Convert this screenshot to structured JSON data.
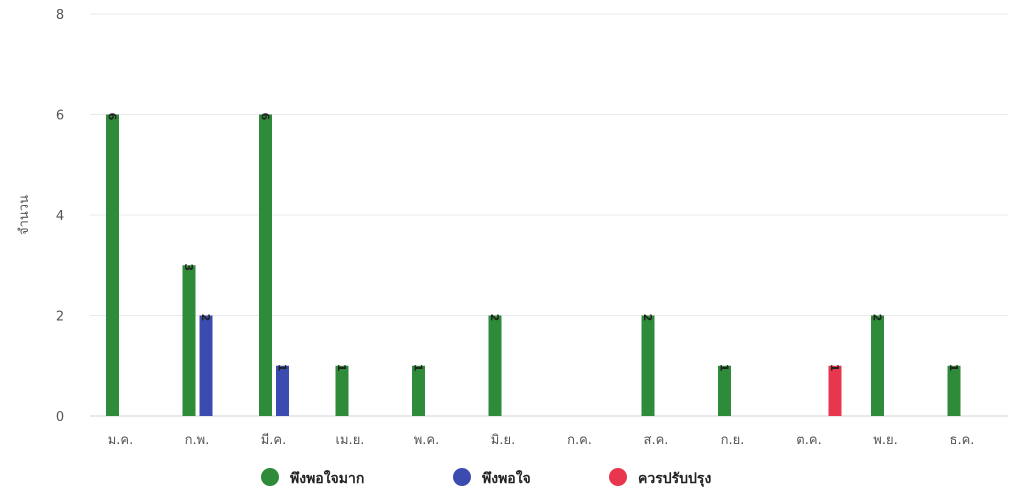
{
  "chart_data": {
    "type": "bar",
    "ylabel": "จำนวน",
    "xlabel": "",
    "ylim": [
      0,
      8
    ],
    "yticks": [
      0,
      2,
      4,
      6,
      8
    ],
    "grid": true,
    "legend_position": "bottom-center",
    "categories": [
      "ม.ค.",
      "ก.พ.",
      "มี.ค.",
      "เม.ย.",
      "พ.ค.",
      "มิ.ย.",
      "ก.ค.",
      "ส.ค.",
      "ก.ย.",
      "ต.ค.",
      "พ.ย.",
      "ธ.ค."
    ],
    "series": [
      {
        "name": "พึงพอใจมาก",
        "color": "#2e8b3a",
        "values": [
          6,
          3,
          6,
          1,
          1,
          2,
          0,
          2,
          1,
          0,
          2,
          1
        ]
      },
      {
        "name": "พึงพอใจ",
        "color": "#3c4bb0",
        "values": [
          0,
          2,
          1,
          0,
          0,
          0,
          0,
          0,
          0,
          0,
          0,
          0
        ]
      },
      {
        "name": "ควรปรับปรุง",
        "color": "#e8364f",
        "values": [
          0,
          0,
          0,
          0,
          0,
          0,
          0,
          0,
          0,
          1,
          0,
          0
        ]
      }
    ]
  }
}
